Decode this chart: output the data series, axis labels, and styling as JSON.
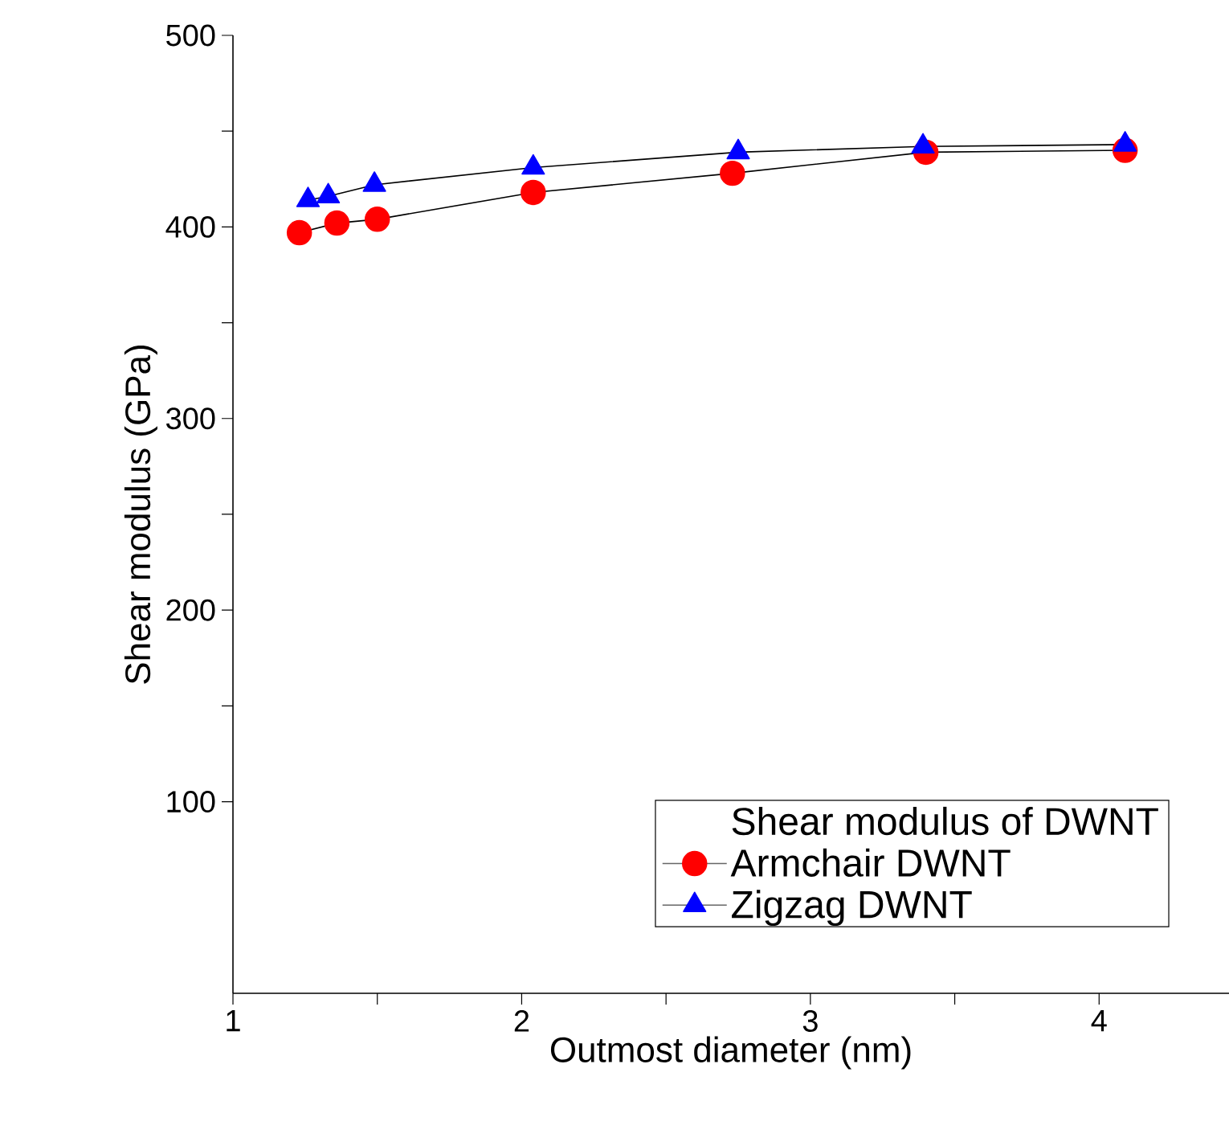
{
  "chart_data": {
    "type": "line",
    "xlabel": "Outmost diameter (nm)",
    "ylabel": "Shear modulus (GPa)",
    "legend_title": "Shear modulus of DWNT",
    "series": [
      {
        "name": "Armchair DWNT",
        "color": "#ff0000",
        "marker": "circle",
        "x": [
          1.23,
          1.36,
          1.5,
          2.04,
          2.73,
          3.4,
          4.09
        ],
        "values": [
          397,
          402,
          404,
          418,
          428,
          439,
          440
        ]
      },
      {
        "name": "Zigzag DWNT",
        "color": "#0000ff",
        "marker": "triangle",
        "x": [
          1.26,
          1.33,
          1.49,
          2.04,
          2.75,
          3.39,
          4.09
        ],
        "values": [
          414,
          416,
          422,
          431,
          439,
          442,
          443
        ]
      }
    ],
    "xlim": [
      1,
      4.45
    ],
    "ylim": [
      0,
      500
    ],
    "xticks": [
      1,
      2,
      3,
      4
    ],
    "yticks": [
      100,
      200,
      300,
      400,
      500
    ],
    "grid": false,
    "legend": "bottom right",
    "line_style": "solid"
  }
}
